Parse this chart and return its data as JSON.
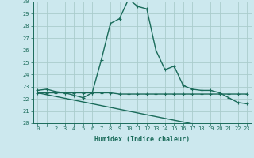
{
  "xlabel": "Humidex (Indice chaleur)",
  "bg_color": "#cce8ee",
  "grid_color": "#aacccc",
  "line_color": "#1a6b5a",
  "x_values": [
    0,
    1,
    2,
    3,
    4,
    5,
    6,
    7,
    8,
    9,
    10,
    11,
    12,
    13,
    14,
    15,
    16,
    17,
    18,
    19,
    20,
    21,
    22,
    23
  ],
  "curve1_y": [
    22.7,
    22.8,
    22.6,
    22.5,
    22.3,
    22.1,
    22.5,
    25.2,
    28.2,
    28.6,
    30.2,
    29.6,
    29.4,
    26.0,
    24.4,
    24.7,
    23.1,
    22.8,
    22.7,
    22.7,
    22.5,
    22.1,
    21.7,
    21.6
  ],
  "curve2_y": [
    22.5,
    22.5,
    22.5,
    22.5,
    22.5,
    22.5,
    22.5,
    22.5,
    22.5,
    22.4,
    22.4,
    22.4,
    22.4,
    22.4,
    22.4,
    22.4,
    22.4,
    22.4,
    22.4,
    22.4,
    22.4,
    22.4,
    22.4,
    22.4
  ],
  "curve3_y": [
    22.5,
    22.35,
    22.2,
    22.05,
    21.9,
    21.75,
    21.6,
    21.45,
    21.3,
    21.15,
    21.0,
    20.85,
    20.7,
    20.55,
    20.4,
    20.25,
    20.1,
    19.95,
    19.85,
    19.7,
    19.6,
    19.5,
    19.45,
    19.4
  ],
  "ylim": [
    20,
    30
  ],
  "xlim": [
    -0.5,
    23.5
  ],
  "yticks": [
    20,
    21,
    22,
    23,
    24,
    25,
    26,
    27,
    28,
    29,
    30
  ],
  "xticks": [
    0,
    1,
    2,
    3,
    4,
    5,
    6,
    7,
    8,
    9,
    10,
    11,
    12,
    13,
    14,
    15,
    16,
    17,
    18,
    19,
    20,
    21,
    22,
    23
  ],
  "xtick_labels": [
    "0",
    "1",
    "2",
    "3",
    "4",
    "5",
    "6",
    "7",
    "8",
    "9",
    "10",
    "11",
    "12",
    "13",
    "14",
    "15",
    "16",
    "17",
    "18",
    "19",
    "20",
    "21",
    "22",
    "23"
  ],
  "markersize": 3,
  "linewidth": 1.0
}
